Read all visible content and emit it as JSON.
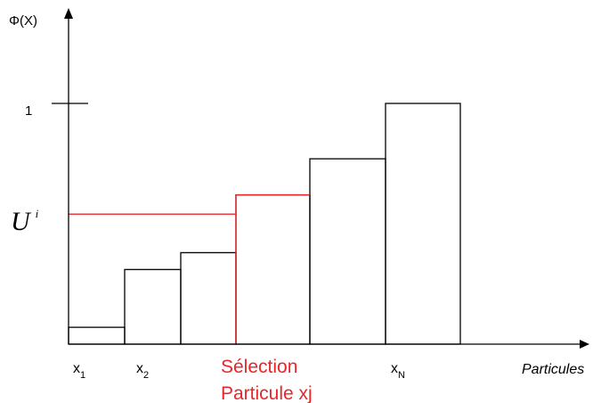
{
  "chart_data": {
    "type": "bar",
    "title": "",
    "ylabel": "Φ(X)",
    "xlabel": "Particules",
    "ytick": "1",
    "threshold_label": {
      "main": "U",
      "sup": "i"
    },
    "threshold_value": 0.54,
    "ylim": [
      0,
      1.0
    ],
    "values": [
      0.07,
      0.31,
      0.38,
      0.62,
      0.77,
      1.0
    ],
    "selected_index": 3,
    "x_labels": [
      {
        "main": "x",
        "sub": "1"
      },
      {
        "main": "x",
        "sub": "2"
      },
      {
        "main": "x",
        "sub": "N"
      }
    ],
    "selection_label": [
      "Sélection",
      "Particule xj"
    ]
  },
  "colors": {
    "axis": "#000000",
    "highlight": "#e8262a"
  }
}
